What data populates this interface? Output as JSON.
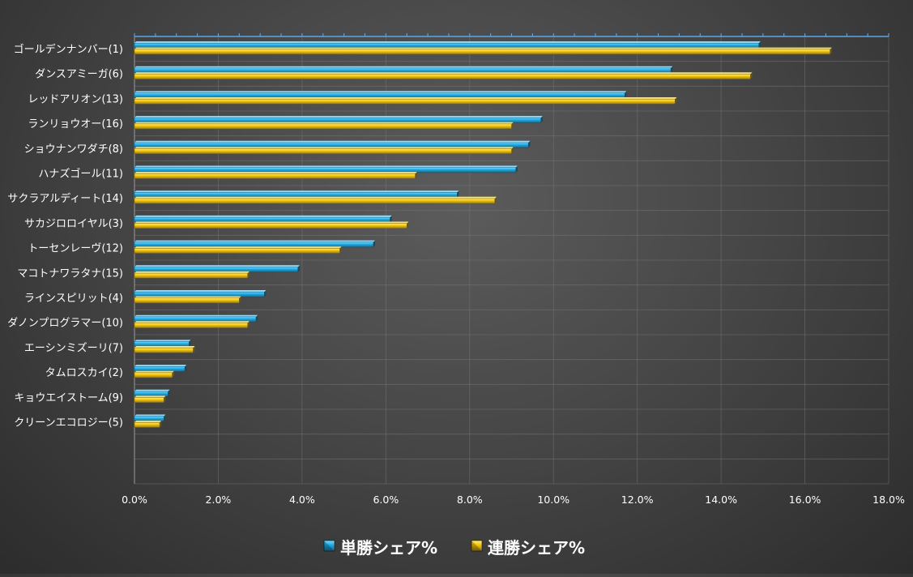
{
  "chart_data": {
    "type": "bar",
    "orientation": "horizontal",
    "categories": [
      "ゴールデンナンバー(1)",
      "ダンスアミーガ(6)",
      "レッドアリオン(13)",
      "ランリョウオー(16)",
      "ショウナンワダチ(8)",
      "ハナズゴール(11)",
      "サクラアルディート(14)",
      "サカジロロイヤル(3)",
      "トーセンレーヴ(12)",
      "マコトナワラタナ(15)",
      "ラインスピリット(4)",
      "ダノンプログラマー(10)",
      "エーシンミズーリ(7)",
      "タムロスカイ(2)",
      "キョウエイストーム(9)",
      "クリーンエコロジー(5)"
    ],
    "series": [
      {
        "name": "単勝シェア%",
        "color": "#19a8e0",
        "values": [
          14.9,
          12.8,
          11.7,
          9.7,
          9.4,
          9.1,
          7.7,
          6.1,
          5.7,
          3.9,
          3.1,
          2.9,
          1.3,
          1.2,
          0.8,
          0.7
        ]
      },
      {
        "name": "連勝シェア%",
        "color": "#f2c200",
        "values": [
          16.6,
          14.7,
          12.9,
          9.0,
          9.0,
          6.7,
          8.6,
          6.5,
          4.9,
          2.7,
          2.5,
          2.7,
          1.4,
          0.9,
          0.7,
          0.6
        ]
      }
    ],
    "xlim": [
      0,
      18
    ],
    "xticks": [
      "0.0%",
      "2.0%",
      "4.0%",
      "6.0%",
      "8.0%",
      "10.0%",
      "12.0%",
      "14.0%",
      "16.0%",
      "18.0%"
    ],
    "title": "",
    "xlabel": "",
    "ylabel": "",
    "grid": true,
    "legend_position": "bottom"
  }
}
